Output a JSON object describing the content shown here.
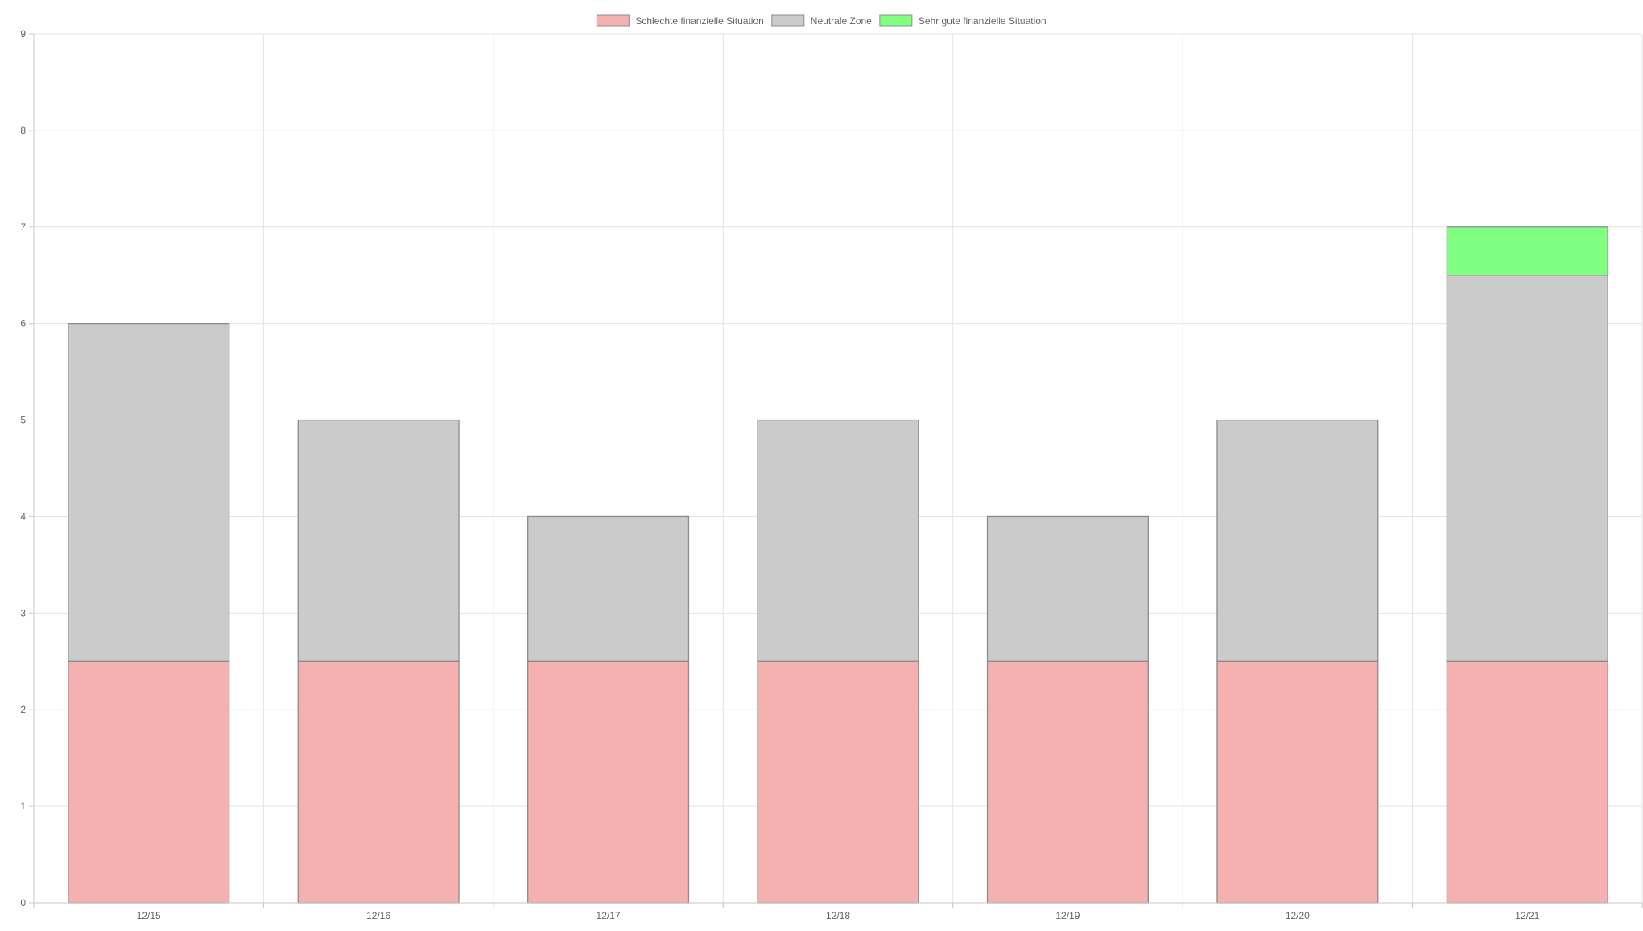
{
  "chart_data": {
    "type": "bar",
    "stacked": true,
    "categories": [
      "12/15",
      "12/16",
      "12/17",
      "12/18",
      "12/19",
      "12/20",
      "12/21"
    ],
    "series": [
      {
        "name": "Schlechte finanzielle Situation",
        "color": "#f5b0b0",
        "values": [
          2.5,
          2.5,
          2.5,
          2.5,
          2.5,
          2.5,
          2.5
        ]
      },
      {
        "name": "Neutrale Zone",
        "color": "#cbcbcb",
        "values": [
          3.5,
          2.5,
          1.5,
          2.5,
          1.5,
          2.5,
          4.0
        ]
      },
      {
        "name": "Sehr gute finanzielle Situation",
        "color": "#80ff80",
        "values": [
          0,
          0,
          0,
          0,
          0,
          0,
          0.5
        ]
      }
    ],
    "ylim": [
      0,
      9
    ],
    "yticks": [
      "0",
      "1",
      "2",
      "3",
      "4",
      "5",
      "6",
      "7",
      "8",
      "9"
    ],
    "grid": true,
    "legend_position": "top-center"
  }
}
